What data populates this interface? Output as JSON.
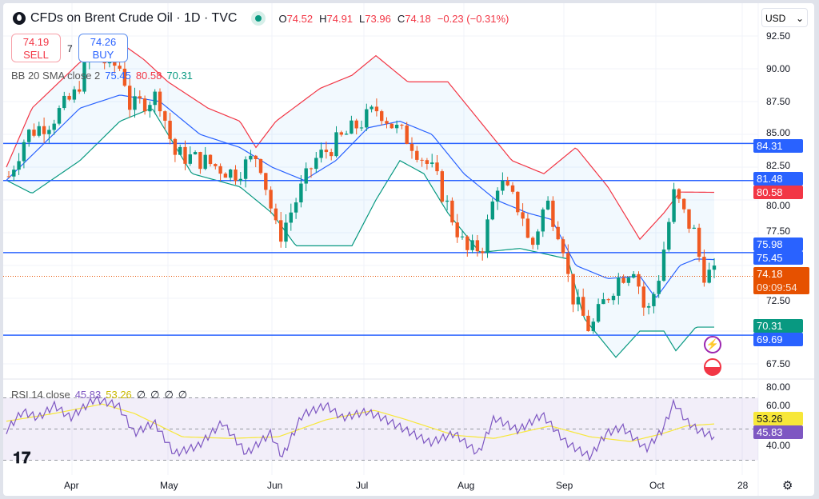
{
  "header": {
    "title": "CFDs on Brent Crude Oil · 1D · TVC",
    "open_label": "O",
    "open": "74.52",
    "high_label": "H",
    "high": "74.91",
    "low_label": "L",
    "low": "73.96",
    "close_label": "C",
    "close": "74.18",
    "change": "−0.23 (−0.31%)"
  },
  "trade": {
    "sell_price": "74.19",
    "sell_label": "SELL",
    "spread": "7",
    "buy_price": "74.26",
    "buy_label": "BUY"
  },
  "bb": {
    "label": "BB 20 SMA close 2",
    "middle": "75.45",
    "upper": "80.58",
    "lower": "70.31"
  },
  "rsi": {
    "label": "RSI 14 close",
    "value": "45.83",
    "ma": "53.26",
    "na1": "∅",
    "na2": "∅",
    "na3": "∅",
    "na4": "∅"
  },
  "currency": "USD",
  "price_ticks": [
    "92.50",
    "90.00",
    "87.50",
    "85.00",
    "82.50",
    "80.00",
    "77.50",
    "72.50",
    "67.50"
  ],
  "rsi_ticks": [
    "80.00",
    "60.00",
    "40.00"
  ],
  "time_ticks": [
    "Apr",
    "May",
    "Jun",
    "Jul",
    "Aug",
    "Sep",
    "Oct",
    "28"
  ],
  "horizontal_lines": [
    "84.31",
    "81.48",
    "75.98",
    "69.69"
  ],
  "last_price": "74.18",
  "countdown": "09:09:54",
  "colors": {
    "up": "#089981",
    "down": "#f05a22",
    "line": "#2962ff",
    "bb_upper": "#f23645",
    "bb_mid": "#2962ff",
    "bb_lower": "#089981",
    "rsi": "#7e57c2",
    "rsi_ma": "#f7e739"
  },
  "series": {
    "close": [
      [
        0,
        81.8
      ],
      [
        22,
        85
      ],
      [
        52,
        86
      ],
      [
        82,
        88
      ],
      [
        102,
        91
      ],
      [
        142,
        90
      ],
      [
        152,
        87
      ],
      [
        187,
        88
      ],
      [
        207,
        83.5
      ],
      [
        242,
        83
      ],
      [
        282,
        82
      ],
      [
        312,
        83.5
      ],
      [
        337,
        77
      ],
      [
        352,
        79
      ],
      [
        382,
        83
      ],
      [
        412,
        84.5
      ],
      [
        442,
        86
      ],
      [
        462,
        87
      ],
      [
        482,
        85.5
      ],
      [
        502,
        84.5
      ],
      [
        532,
        82
      ],
      [
        572,
        76
      ],
      [
        592,
        76.5
      ],
      [
        612,
        81.5
      ],
      [
        642,
        79
      ],
      [
        652,
        76
      ],
      [
        672,
        80
      ],
      [
        692,
        77
      ],
      [
        702,
        73
      ],
      [
        727,
        70
      ],
      [
        742,
        72
      ],
      [
        762,
        74
      ],
      [
        782,
        75
      ],
      [
        797,
        71
      ],
      [
        812,
        74
      ],
      [
        832,
        80.5
      ],
      [
        847,
        78.5
      ],
      [
        857,
        77.5
      ],
      [
        867,
        74.5
      ],
      [
        885,
        74.2
      ]
    ],
    "bb_upper": [
      [
        0,
        82.5
      ],
      [
        32,
        87
      ],
      [
        92,
        90.5
      ],
      [
        142,
        92
      ],
      [
        172,
        90.7
      ],
      [
        202,
        89
      ],
      [
        252,
        87
      ],
      [
        292,
        86
      ],
      [
        312,
        84
      ],
      [
        337,
        86
      ],
      [
        392,
        88.5
      ],
      [
        432,
        89.5
      ],
      [
        462,
        91
      ],
      [
        502,
        89
      ],
      [
        552,
        89
      ],
      [
        592,
        86
      ],
      [
        632,
        83
      ],
      [
        672,
        82
      ],
      [
        712,
        84
      ],
      [
        752,
        81
      ],
      [
        792,
        77
      ],
      [
        822,
        79
      ],
      [
        842,
        80.6
      ],
      [
        885,
        80.58
      ]
    ],
    "bb_mid": [
      [
        0,
        81.5
      ],
      [
        42,
        84
      ],
      [
        92,
        87
      ],
      [
        142,
        88
      ],
      [
        192,
        87.5
      ],
      [
        242,
        85
      ],
      [
        292,
        84
      ],
      [
        332,
        82.5
      ],
      [
        372,
        81.5
      ],
      [
        412,
        83
      ],
      [
        452,
        85.5
      ],
      [
        492,
        86
      ],
      [
        532,
        85
      ],
      [
        572,
        82
      ],
      [
        612,
        80
      ],
      [
        652,
        79
      ],
      [
        682,
        78.5
      ],
      [
        712,
        75
      ],
      [
        752,
        74
      ],
      [
        792,
        74.2
      ],
      [
        812,
        72.5
      ],
      [
        842,
        75
      ],
      [
        862,
        75.5
      ],
      [
        885,
        75.45
      ]
    ],
    "bb_lower": [
      [
        0,
        81.5
      ],
      [
        32,
        80.5
      ],
      [
        92,
        83
      ],
      [
        142,
        86
      ],
      [
        182,
        87
      ],
      [
        202,
        85
      ],
      [
        232,
        82
      ],
      [
        292,
        81
      ],
      [
        332,
        79
      ],
      [
        362,
        76.5
      ],
      [
        432,
        76.5
      ],
      [
        462,
        80
      ],
      [
        492,
        83
      ],
      [
        522,
        82
      ],
      [
        552,
        79
      ],
      [
        592,
        76
      ],
      [
        642,
        76.3
      ],
      [
        702,
        75.5
      ],
      [
        722,
        71
      ],
      [
        762,
        68
      ],
      [
        792,
        70
      ],
      [
        822,
        70
      ],
      [
        837,
        68.5
      ],
      [
        862,
        70.3
      ],
      [
        885,
        70.3
      ]
    ],
    "rsi": [
      [
        0,
        50
      ],
      [
        20,
        62
      ],
      [
        40,
        58
      ],
      [
        60,
        66
      ],
      [
        80,
        58
      ],
      [
        110,
        70
      ],
      [
        140,
        66
      ],
      [
        160,
        48
      ],
      [
        185,
        55
      ],
      [
        210,
        35
      ],
      [
        240,
        40
      ],
      [
        270,
        55
      ],
      [
        300,
        35
      ],
      [
        330,
        48
      ],
      [
        345,
        33
      ],
      [
        370,
        60
      ],
      [
        400,
        66
      ],
      [
        420,
        58
      ],
      [
        450,
        62
      ],
      [
        470,
        58
      ],
      [
        500,
        50
      ],
      [
        530,
        42
      ],
      [
        560,
        48
      ],
      [
        590,
        35
      ],
      [
        610,
        58
      ],
      [
        640,
        50
      ],
      [
        670,
        60
      ],
      [
        700,
        42
      ],
      [
        730,
        33
      ],
      [
        750,
        48
      ],
      [
        770,
        52
      ],
      [
        800,
        38
      ],
      [
        820,
        50
      ],
      [
        835,
        68
      ],
      [
        850,
        56
      ],
      [
        865,
        50
      ],
      [
        885,
        45.83
      ]
    ],
    "rsi_ma": [
      [
        0,
        55
      ],
      [
        60,
        60
      ],
      [
        120,
        66
      ],
      [
        160,
        60
      ],
      [
        220,
        45
      ],
      [
        280,
        44
      ],
      [
        340,
        45
      ],
      [
        400,
        56
      ],
      [
        460,
        62
      ],
      [
        500,
        56
      ],
      [
        560,
        46
      ],
      [
        610,
        44
      ],
      [
        680,
        52
      ],
      [
        730,
        45
      ],
      [
        780,
        42
      ],
      [
        820,
        47
      ],
      [
        850,
        52
      ],
      [
        885,
        53.26
      ]
    ]
  }
}
